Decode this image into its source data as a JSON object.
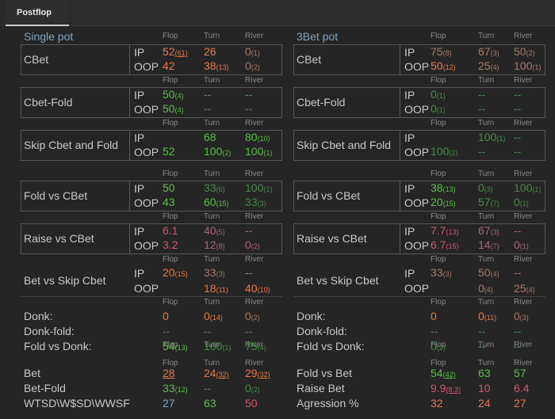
{
  "tab": {
    "label": "Postflop"
  },
  "headers": {
    "flop": "Flop",
    "turn": "Turn",
    "river": "River"
  },
  "pos": {
    "ip": "IP",
    "oop": "OOP"
  },
  "single": {
    "title": "Single pot",
    "cbet": {
      "label": "CBet",
      "ip": [
        {
          "v": "52",
          "c": "(61)",
          "col": "o",
          "uc": true
        },
        {
          "v": "26",
          "c": "",
          "col": "o"
        },
        {
          "v": "0",
          "c": "(1)",
          "col": "lo"
        }
      ],
      "oop": [
        {
          "v": "42",
          "c": "",
          "col": "o"
        },
        {
          "v": "38",
          "c": "(13)",
          "col": "o"
        },
        {
          "v": "0",
          "c": "(2)",
          "col": "lo"
        }
      ]
    },
    "cbet_fold": {
      "label": "Cbet-Fold",
      "ip": [
        {
          "v": "50",
          "c": "(4)",
          "col": "g"
        },
        {
          "v": "--",
          "c": "",
          "col": "lg"
        },
        {
          "v": "--",
          "c": "",
          "col": "lg"
        }
      ],
      "oop": [
        {
          "v": "50",
          "c": "(4)",
          "col": "g"
        },
        {
          "v": "--",
          "c": "",
          "col": "lg"
        },
        {
          "v": "--",
          "c": "",
          "col": "lg"
        }
      ]
    },
    "skip_cbet_fold": {
      "label": "Skip Cbet and Fold",
      "ip": [
        {
          "v": "",
          "c": "",
          "col": "g"
        },
        {
          "v": "68",
          "c": "",
          "col": "g"
        },
        {
          "v": "80",
          "c": "(10)",
          "col": "g"
        }
      ],
      "oop": [
        {
          "v": "52",
          "c": "",
          "col": "g"
        },
        {
          "v": "100",
          "c": "(2)",
          "col": "g"
        },
        {
          "v": "100",
          "c": "(1)",
          "col": "g"
        }
      ]
    },
    "fold_vs_cbet": {
      "label": "Fold vs CBet",
      "ip": [
        {
          "v": "50",
          "c": "",
          "col": "g"
        },
        {
          "v": "33",
          "c": "(6)",
          "col": "lg"
        },
        {
          "v": "100",
          "c": "(1)",
          "col": "lg"
        }
      ],
      "oop": [
        {
          "v": "43",
          "c": "",
          "col": "g"
        },
        {
          "v": "60",
          "c": "(15)",
          "col": "g"
        },
        {
          "v": "33",
          "c": "(3)",
          "col": "lg"
        }
      ]
    },
    "raise_vs_cbet": {
      "label": "Raise vs CBet",
      "ip": [
        {
          "v": "6.1",
          "c": "",
          "col": "r"
        },
        {
          "v": "40",
          "c": "(5)",
          "col": "lr"
        },
        {
          "v": "--",
          "c": "",
          "col": "lr"
        }
      ],
      "oop": [
        {
          "v": "3.2",
          "c": "",
          "col": "r"
        },
        {
          "v": "12",
          "c": "(8)",
          "col": "lr"
        },
        {
          "v": "0",
          "c": "(2)",
          "col": "lr"
        }
      ]
    },
    "bet_vs_skip": {
      "label": "Bet vs Skip Cbet",
      "ip": [
        {
          "v": "20",
          "c": "(15)",
          "col": "o"
        },
        {
          "v": "33",
          "c": "(3)",
          "col": "lo"
        },
        {
          "v": "--",
          "c": "",
          "col": "lo"
        }
      ],
      "oop": [
        {
          "v": "",
          "c": "",
          "col": "o"
        },
        {
          "v": "18",
          "c": "(11)",
          "col": "o"
        },
        {
          "v": "40",
          "c": "(10)",
          "col": "o"
        }
      ]
    },
    "donk": {
      "label": "Donk:",
      "vals": [
        {
          "v": "0",
          "c": "",
          "col": "o"
        },
        {
          "v": "0",
          "c": "(14)",
          "col": "o"
        },
        {
          "v": "0",
          "c": "(2)",
          "col": "lo"
        }
      ]
    },
    "donk_fold": {
      "label": "Donk-fold:",
      "vals": [
        {
          "v": "--",
          "c": "",
          "col": "lg"
        },
        {
          "v": "--",
          "c": "",
          "col": "lg"
        },
        {
          "v": "--",
          "c": "",
          "col": "lg"
        }
      ]
    },
    "fold_vs_donk": {
      "label": "Fold vs Donk:",
      "vals": [
        {
          "v": "54",
          "c": "(13)",
          "col": "g"
        },
        {
          "v": "100",
          "c": "(1)",
          "col": "lg"
        },
        {
          "v": "75",
          "c": "(4)",
          "col": "lg"
        }
      ]
    },
    "bet": {
      "label": "Bet",
      "vals": [
        {
          "v": "28",
          "c": "",
          "col": "o",
          "uv": true
        },
        {
          "v": "24",
          "c": "(32)",
          "col": "o",
          "uc": true
        },
        {
          "v": "29",
          "c": "(32)",
          "col": "o",
          "uc": true
        }
      ]
    },
    "bet_fold": {
      "label": "Bet-Fold",
      "vals": [
        {
          "v": "33",
          "c": "(12)",
          "col": "g"
        },
        {
          "v": "--",
          "c": "",
          "col": "lg"
        },
        {
          "v": "0",
          "c": "(2)",
          "col": "lg"
        }
      ]
    },
    "wtsd": {
      "label": "WTSD\\W$SD\\WWSF",
      "vals": [
        {
          "v": "27",
          "c": "",
          "col": "b"
        },
        {
          "v": "63",
          "c": "",
          "col": "g"
        },
        {
          "v": "50",
          "c": "",
          "col": "r"
        }
      ]
    }
  },
  "threebet": {
    "title": "3Bet pot",
    "cbet": {
      "label": "CBet",
      "ip": [
        {
          "v": "75",
          "c": "(8)",
          "col": "lo"
        },
        {
          "v": "67",
          "c": "(3)",
          "col": "lo"
        },
        {
          "v": "50",
          "c": "(2)",
          "col": "lo"
        }
      ],
      "oop": [
        {
          "v": "50",
          "c": "(12)",
          "col": "o"
        },
        {
          "v": "25",
          "c": "(4)",
          "col": "lo"
        },
        {
          "v": "100",
          "c": "(1)",
          "col": "lo"
        }
      ]
    },
    "cbet_fold": {
      "label": "Cbet-Fold",
      "ip": [
        {
          "v": "0",
          "c": "(1)",
          "col": "lg"
        },
        {
          "v": "--",
          "c": "",
          "col": "lg"
        },
        {
          "v": "--",
          "c": "",
          "col": "lg"
        }
      ],
      "oop": [
        {
          "v": "0",
          "c": "(1)",
          "col": "lg"
        },
        {
          "v": "--",
          "c": "",
          "col": "lg"
        },
        {
          "v": "--",
          "c": "",
          "col": "lg"
        }
      ]
    },
    "skip_cbet_fold": {
      "label": "Skip Cbet and Fold",
      "ip": [
        {
          "v": "",
          "c": "",
          "col": "g"
        },
        {
          "v": "100",
          "c": "(1)",
          "col": "lg"
        },
        {
          "v": "--",
          "c": "",
          "col": "lg"
        }
      ],
      "oop": [
        {
          "v": "100",
          "c": "(2)",
          "col": "lg"
        },
        {
          "v": "--",
          "c": "",
          "col": "lg"
        },
        {
          "v": "--",
          "c": "",
          "col": "lg"
        }
      ]
    },
    "fold_vs_cbet": {
      "label": "Fold vs CBet",
      "ip": [
        {
          "v": "38",
          "c": "(13)",
          "col": "g"
        },
        {
          "v": "0",
          "c": "(3)",
          "col": "lg"
        },
        {
          "v": "100",
          "c": "(1)",
          "col": "lg"
        }
      ],
      "oop": [
        {
          "v": "20",
          "c": "(15)",
          "col": "g"
        },
        {
          "v": "57",
          "c": "(7)",
          "col": "lg"
        },
        {
          "v": "0",
          "c": "(1)",
          "col": "lg"
        }
      ]
    },
    "raise_vs_cbet": {
      "label": "Raise vs CBet",
      "ip": [
        {
          "v": "7.7",
          "c": "(13)",
          "col": "r"
        },
        {
          "v": "67",
          "c": "(3)",
          "col": "lr"
        },
        {
          "v": "--",
          "c": "",
          "col": "lr"
        }
      ],
      "oop": [
        {
          "v": "6.7",
          "c": "(15)",
          "col": "r"
        },
        {
          "v": "14",
          "c": "(7)",
          "col": "lr"
        },
        {
          "v": "0",
          "c": "(1)",
          "col": "lr"
        }
      ]
    },
    "bet_vs_skip": {
      "label": "Bet vs Skip Cbet",
      "ip": [
        {
          "v": "33",
          "c": "(3)",
          "col": "lo"
        },
        {
          "v": "50",
          "c": "(4)",
          "col": "lo"
        },
        {
          "v": "--",
          "c": "",
          "col": "lo"
        }
      ],
      "oop": [
        {
          "v": "",
          "c": "",
          "col": "lo"
        },
        {
          "v": "0",
          "c": "(4)",
          "col": "lo"
        },
        {
          "v": "25",
          "c": "(4)",
          "col": "lo"
        }
      ]
    },
    "donk": {
      "label": "Donk:",
      "vals": [
        {
          "v": "0",
          "c": "",
          "col": "o"
        },
        {
          "v": "0",
          "c": "(11)",
          "col": "o"
        },
        {
          "v": "0",
          "c": "(3)",
          "col": "lo"
        }
      ]
    },
    "donk_fold": {
      "label": "Donk-fold:",
      "vals": [
        {
          "v": "--",
          "c": "",
          "col": "lg"
        },
        {
          "v": "--",
          "c": "",
          "col": "lg"
        },
        {
          "v": "--",
          "c": "",
          "col": "lg"
        }
      ]
    },
    "fold_vs_donk": {
      "label": "Fold vs Donk:",
      "vals": [
        {
          "v": "0",
          "c": "(2)",
          "col": "lg"
        },
        {
          "v": "--",
          "c": "",
          "col": "lg"
        },
        {
          "v": "--",
          "c": "",
          "col": "lg"
        }
      ]
    },
    "fold_vs_bet": {
      "label": "Fold vs Bet",
      "vals": [
        {
          "v": "54",
          "c": "(42)",
          "col": "g",
          "uc": true
        },
        {
          "v": "63",
          "c": "",
          "col": "g"
        },
        {
          "v": "57",
          "c": "",
          "col": "g"
        }
      ]
    },
    "raise_bet": {
      "label": "Raise Bet",
      "vals": [
        {
          "v": "9.9",
          "c": "(8.3)",
          "col": "r",
          "uc": true
        },
        {
          "v": "10",
          "c": "",
          "col": "r"
        },
        {
          "v": "6.4",
          "c": "",
          "col": "r"
        }
      ]
    },
    "agression": {
      "label": "Agression %",
      "vals": [
        {
          "v": "32",
          "c": "",
          "col": "o"
        },
        {
          "v": "24",
          "c": "",
          "col": "o"
        },
        {
          "v": "27",
          "c": "",
          "col": "o"
        }
      ]
    }
  },
  "colors": {
    "green": "#5cbf4a",
    "orange": "#e67a4e",
    "red": "#d2566e",
    "blue": "#7aa7c7",
    "title": "#7fa3c2"
  }
}
